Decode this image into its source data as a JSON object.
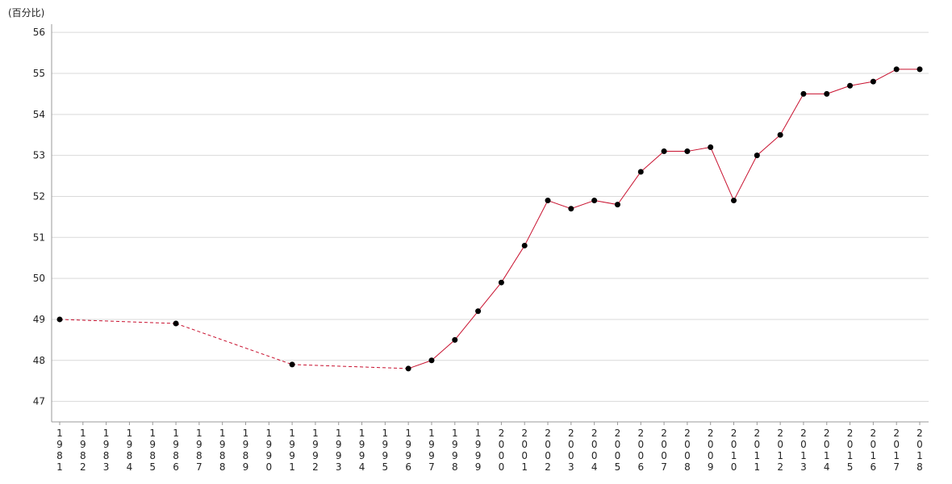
{
  "chart_data": {
    "type": "line",
    "y_unit_label": "(百分比)",
    "ylim": [
      46.5,
      56.2
    ],
    "y_ticks": [
      47,
      48,
      49,
      50,
      51,
      52,
      53,
      54,
      55,
      56
    ],
    "y_tick_labels": [
      "47",
      "48",
      "49",
      "50",
      "51",
      "52",
      "53",
      "54",
      "55",
      "56"
    ],
    "grid": true,
    "legend": "none",
    "series_color": "#c8102e",
    "marker_color": "#000000",
    "grid_color": "#d9d9d9",
    "axis_color": "#999999",
    "categories": [
      "1981",
      "1982",
      "1983",
      "1984",
      "1985",
      "1986",
      "1987",
      "1988",
      "1989",
      "1990",
      "1991",
      "1992",
      "1993",
      "1994",
      "1995",
      "1996",
      "1997",
      "1998",
      "1999",
      "2000",
      "2001",
      "2002",
      "2003",
      "2004",
      "2005",
      "2006",
      "2007",
      "2008",
      "2009",
      "2010",
      "2011",
      "2012",
      "2013",
      "2014",
      "2015",
      "2016",
      "2017",
      "2018"
    ],
    "series": [
      {
        "points": [
          {
            "x": "1981",
            "y": 49.0
          },
          {
            "x": "1986",
            "y": 48.9
          },
          {
            "x": "1991",
            "y": 47.9
          },
          {
            "x": "1996",
            "y": 47.8
          },
          {
            "x": "1997",
            "y": 48.0
          },
          {
            "x": "1998",
            "y": 48.5
          },
          {
            "x": "1999",
            "y": 49.2
          },
          {
            "x": "2000",
            "y": 49.9
          },
          {
            "x": "2001",
            "y": 50.8
          },
          {
            "x": "2002",
            "y": 51.9
          },
          {
            "x": "2003",
            "y": 51.7
          },
          {
            "x": "2004",
            "y": 51.9
          },
          {
            "x": "2005",
            "y": 51.8
          },
          {
            "x": "2006",
            "y": 52.6
          },
          {
            "x": "2007",
            "y": 53.1
          },
          {
            "x": "2008",
            "y": 53.1
          },
          {
            "x": "2009",
            "y": 53.2
          },
          {
            "x": "2010",
            "y": 51.9
          },
          {
            "x": "2011",
            "y": 53.0
          },
          {
            "x": "2012",
            "y": 53.5
          },
          {
            "x": "2013",
            "y": 54.5
          },
          {
            "x": "2014",
            "y": 54.5
          },
          {
            "x": "2015",
            "y": 54.7
          },
          {
            "x": "2016",
            "y": 54.8
          },
          {
            "x": "2017",
            "y": 55.1
          },
          {
            "x": "2018",
            "y": 55.1
          }
        ]
      }
    ],
    "dashed_until": "1996"
  }
}
